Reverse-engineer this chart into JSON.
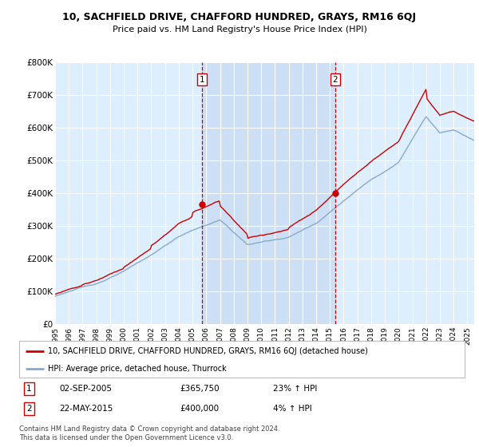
{
  "title": "10, SACHFIELD DRIVE, CHAFFORD HUNDRED, GRAYS, RM16 6QJ",
  "subtitle": "Price paid vs. HM Land Registry's House Price Index (HPI)",
  "legend_line1": "10, SACHFIELD DRIVE, CHAFFORD HUNDRED, GRAYS, RM16 6QJ (detached house)",
  "legend_line2": "HPI: Average price, detached house, Thurrock",
  "annotation1_label": "1",
  "annotation1_date": "02-SEP-2005",
  "annotation1_price": "£365,750",
  "annotation1_hpi": "23% ↑ HPI",
  "annotation2_label": "2",
  "annotation2_date": "22-MAY-2015",
  "annotation2_price": "£400,000",
  "annotation2_hpi": "4% ↑ HPI",
  "footer": "Contains HM Land Registry data © Crown copyright and database right 2024.\nThis data is licensed under the Open Government Licence v3.0.",
  "red_color": "#cc0000",
  "blue_color": "#88aacc",
  "vline_color": "#cc0000",
  "bg_color": "#ffffff",
  "plot_bg_color": "#ddeeff",
  "highlight_bg_color": "#ccdff5",
  "grid_color": "#ffffff",
  "ylim": [
    0,
    800000
  ],
  "yticks": [
    0,
    100000,
    200000,
    300000,
    400000,
    500000,
    600000,
    700000,
    800000
  ],
  "ytick_labels": [
    "£0",
    "£100K",
    "£200K",
    "£300K",
    "£400K",
    "£500K",
    "£600K",
    "£700K",
    "£800K"
  ],
  "sale1_x": 2005.67,
  "sale1_y": 365750,
  "sale2_x": 2015.39,
  "sale2_y": 400000,
  "xmin": 1995.0,
  "xmax": 2025.5
}
